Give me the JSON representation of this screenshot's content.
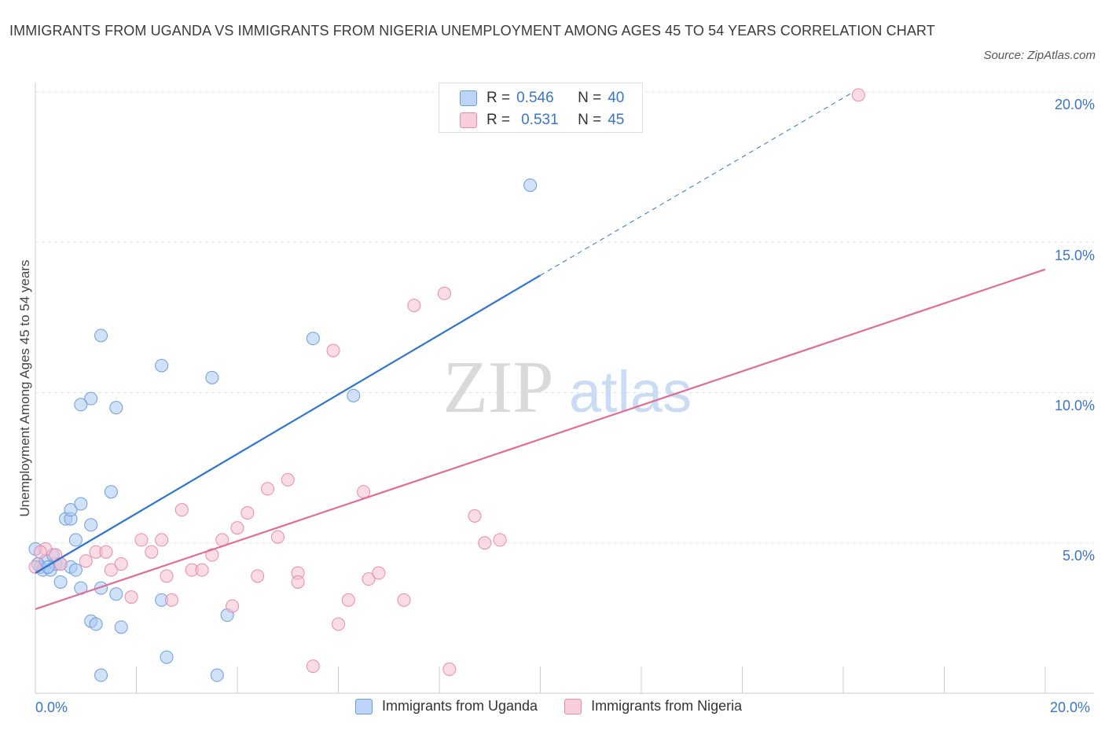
{
  "title": "IMMIGRANTS FROM UGANDA VS IMMIGRANTS FROM NIGERIA UNEMPLOYMENT AMONG AGES 45 TO 54 YEARS CORRELATION CHART",
  "source": "Source: ZipAtlas.com",
  "watermark": {
    "zip": "ZIP",
    "atlas": "atlas"
  },
  "legend_top": {
    "r_label": "R =",
    "n_label": "N =",
    "uganda": {
      "r": "0.546",
      "n": "40"
    },
    "nigeria": {
      "r": "0.531",
      "n": "45"
    }
  },
  "colors": {
    "uganda_fill": "#a9c8f3",
    "uganda_stroke": "#6d9edc",
    "uganda_line": "#2f74cf",
    "nigeria_fill": "#f6bfd0",
    "nigeria_stroke": "#e98aa9",
    "nigeria_line": "#e06c97",
    "grid": "#e3e3e3",
    "tick_text": "#3b75c9"
  },
  "chart_data": {
    "type": "scatter",
    "title": "IMMIGRANTS FROM UGANDA VS IMMIGRANTS FROM NIGERIA UNEMPLOYMENT AMONG AGES 45 TO 54 YEARS CORRELATION CHART",
    "xlabel": "",
    "ylabel": "Unemployment Among Ages 45 to 54 years",
    "xlim": [
      0,
      20
    ],
    "ylim": [
      0,
      20
    ],
    "x_tick_labels": [
      "0.0%",
      "20.0%"
    ],
    "y_ticks": [
      5,
      10,
      15,
      20
    ],
    "y_tick_labels": [
      "5.0%",
      "10.0%",
      "15.0%",
      "20.0%"
    ],
    "grid": true,
    "legend_position": "bottom",
    "series": [
      {
        "name": "Immigrants from Uganda",
        "r": 0.546,
        "n": 40,
        "points": [
          [
            0.0,
            4.8
          ],
          [
            0.1,
            4.2
          ],
          [
            0.15,
            4.1
          ],
          [
            0.2,
            4.4
          ],
          [
            0.3,
            4.1
          ],
          [
            0.4,
            4.3
          ],
          [
            0.5,
            4.3
          ],
          [
            0.5,
            3.7
          ],
          [
            0.6,
            5.8
          ],
          [
            0.7,
            4.2
          ],
          [
            0.7,
            5.8
          ],
          [
            0.7,
            6.1
          ],
          [
            0.8,
            5.1
          ],
          [
            0.8,
            4.1
          ],
          [
            0.9,
            6.3
          ],
          [
            1.1,
            5.6
          ],
          [
            1.1,
            9.8
          ],
          [
            0.9,
            9.6
          ],
          [
            1.3,
            11.9
          ],
          [
            1.5,
            6.7
          ],
          [
            1.6,
            9.5
          ],
          [
            0.9,
            3.5
          ],
          [
            1.3,
            3.5
          ],
          [
            1.6,
            3.3
          ],
          [
            1.1,
            2.4
          ],
          [
            1.2,
            2.3
          ],
          [
            1.7,
            2.2
          ],
          [
            1.3,
            0.6
          ],
          [
            2.5,
            10.9
          ],
          [
            2.5,
            3.1
          ],
          [
            2.6,
            1.2
          ],
          [
            3.5,
            10.5
          ],
          [
            3.8,
            2.6
          ],
          [
            3.6,
            0.6
          ],
          [
            5.5,
            11.8
          ],
          [
            6.3,
            9.9
          ],
          [
            9.8,
            16.9
          ],
          [
            0.05,
            4.3
          ],
          [
            0.35,
            4.6
          ],
          [
            0.25,
            4.2
          ]
        ]
      },
      {
        "name": "Immigrants from Nigeria",
        "r": 0.531,
        "n": 45,
        "points": [
          [
            0.0,
            4.2
          ],
          [
            0.2,
            4.8
          ],
          [
            0.4,
            4.6
          ],
          [
            0.5,
            4.3
          ],
          [
            1.0,
            4.4
          ],
          [
            1.2,
            4.7
          ],
          [
            1.4,
            4.7
          ],
          [
            1.5,
            4.1
          ],
          [
            1.7,
            4.3
          ],
          [
            1.9,
            3.2
          ],
          [
            2.1,
            5.1
          ],
          [
            2.3,
            4.7
          ],
          [
            2.5,
            5.1
          ],
          [
            2.6,
            3.9
          ],
          [
            2.7,
            3.1
          ],
          [
            2.9,
            6.1
          ],
          [
            3.1,
            4.1
          ],
          [
            3.3,
            4.1
          ],
          [
            3.5,
            4.6
          ],
          [
            3.7,
            5.1
          ],
          [
            3.9,
            2.9
          ],
          [
            4.0,
            5.5
          ],
          [
            4.2,
            6.0
          ],
          [
            4.4,
            3.9
          ],
          [
            4.6,
            6.8
          ],
          [
            4.8,
            5.2
          ],
          [
            5.0,
            7.1
          ],
          [
            5.2,
            4.0
          ],
          [
            5.2,
            3.7
          ],
          [
            5.5,
            0.9
          ],
          [
            5.9,
            11.4
          ],
          [
            6.0,
            2.3
          ],
          [
            6.2,
            3.1
          ],
          [
            6.5,
            6.7
          ],
          [
            6.6,
            3.8
          ],
          [
            6.8,
            4.0
          ],
          [
            7.3,
            3.1
          ],
          [
            7.5,
            12.9
          ],
          [
            8.1,
            13.3
          ],
          [
            8.2,
            0.8
          ],
          [
            8.7,
            5.9
          ],
          [
            8.9,
            5.0
          ],
          [
            9.2,
            5.1
          ],
          [
            16.3,
            19.9
          ],
          [
            0.1,
            4.7
          ]
        ]
      }
    ],
    "trendlines": [
      {
        "series": "Immigrants from Uganda",
        "x": [
          0,
          10
        ],
        "y": [
          4.0,
          13.9
        ],
        "dashed_extension_to": [
          16.2,
          20.0
        ]
      },
      {
        "series": "Immigrants from Nigeria",
        "x": [
          0,
          20
        ],
        "y": [
          2.8,
          14.1
        ]
      }
    ]
  }
}
